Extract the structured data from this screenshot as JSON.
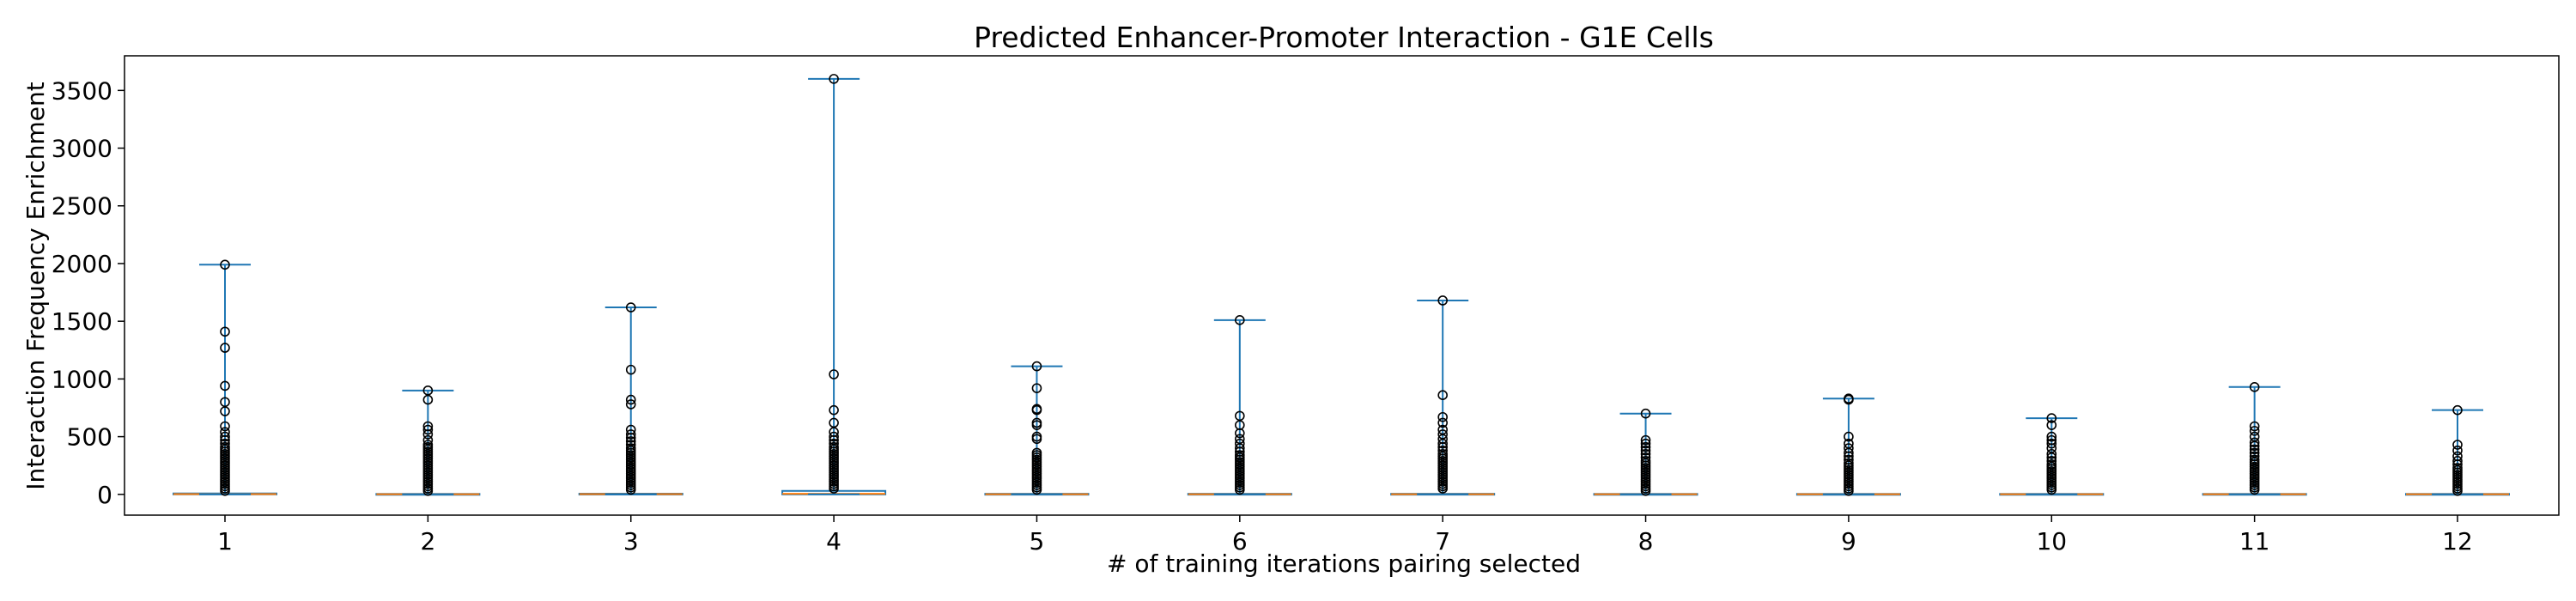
{
  "chart_data": {
    "type": "box",
    "title": "Predicted Enhancer-Promoter Interaction - G1E Cells",
    "xlabel": "# of training iterations pairing selected",
    "ylabel": "Interaction Frequency Enrichment",
    "ylim": [
      -180,
      3800
    ],
    "yticks": [
      "0",
      "500",
      "1000",
      "1500",
      "2000",
      "2500",
      "3000",
      "3500"
    ],
    "categories": [
      "1",
      "2",
      "3",
      "4",
      "5",
      "6",
      "7",
      "8",
      "9",
      "10",
      "11",
      "12"
    ],
    "grid": false,
    "colors": {
      "box": "#1f77b4",
      "median": "#ff7f0e",
      "flier": "#000000"
    },
    "boxes": [
      {
        "category": "1",
        "q1": 0,
        "median": 2,
        "q3": 8,
        "whisker_low": 0,
        "whisker_high": 1990,
        "fliers": [
          1990,
          1410,
          1270,
          940,
          800,
          720,
          590,
          540,
          500,
          470,
          440,
          410,
          390,
          370,
          350,
          330,
          310,
          290,
          270,
          250,
          230,
          210,
          190,
          170,
          150,
          130,
          110,
          90,
          70,
          50,
          30
        ]
      },
      {
        "category": "2",
        "q1": 0,
        "median": 1,
        "q3": 4,
        "whisker_low": 0,
        "whisker_high": 900,
        "fliers": [
          900,
          820,
          590,
          560,
          520,
          470,
          430,
          410,
          390,
          370,
          350,
          330,
          310,
          290,
          270,
          250,
          230,
          210,
          190,
          170,
          150,
          130,
          110,
          90,
          70,
          50,
          30
        ]
      },
      {
        "category": "3",
        "q1": 0,
        "median": 2,
        "q3": 6,
        "whisker_low": 0,
        "whisker_high": 1620,
        "fliers": [
          1620,
          1080,
          820,
          780,
          560,
          520,
          490,
          460,
          430,
          400,
          380,
          360,
          340,
          320,
          300,
          280,
          260,
          240,
          220,
          200,
          180,
          160,
          140,
          120,
          100,
          80,
          60,
          40
        ]
      },
      {
        "category": "4",
        "q1": 0,
        "median": 5,
        "q3": 30,
        "whisker_low": 0,
        "whisker_high": 3600,
        "fliers": [
          3600,
          1040,
          730,
          620,
          540,
          500,
          470,
          440,
          410,
          390,
          370,
          350,
          330,
          310,
          290,
          270,
          250,
          230,
          210,
          190,
          170,
          150,
          130,
          110,
          90,
          70,
          50
        ]
      },
      {
        "category": "5",
        "q1": 0,
        "median": 1,
        "q3": 5,
        "whisker_low": 0,
        "whisker_high": 1110,
        "fliers": [
          1110,
          920,
          740,
          730,
          620,
          600,
          500,
          480,
          360,
          340,
          320,
          300,
          280,
          260,
          240,
          220,
          200,
          180,
          160,
          140,
          120,
          100,
          80,
          60,
          40
        ]
      },
      {
        "category": "6",
        "q1": 0,
        "median": 1,
        "q3": 5,
        "whisker_low": 0,
        "whisker_high": 1510,
        "fliers": [
          1510,
          680,
          600,
          530,
          480,
          440,
          400,
          370,
          340,
          320,
          300,
          280,
          260,
          240,
          220,
          200,
          180,
          160,
          140,
          120,
          100,
          80,
          60,
          40
        ]
      },
      {
        "category": "7",
        "q1": 0,
        "median": 1,
        "q3": 5,
        "whisker_low": 0,
        "whisker_high": 1680,
        "fliers": [
          1680,
          860,
          670,
          620,
          560,
          520,
          480,
          440,
          410,
          380,
          350,
          330,
          310,
          290,
          270,
          250,
          230,
          210,
          190,
          170,
          150,
          130,
          110,
          90,
          70,
          50
        ]
      },
      {
        "category": "8",
        "q1": 0,
        "median": 1,
        "q3": 4,
        "whisker_low": 0,
        "whisker_high": 700,
        "fliers": [
          700,
          470,
          440,
          410,
          380,
          350,
          320,
          290,
          270,
          250,
          230,
          210,
          190,
          170,
          150,
          130,
          110,
          90,
          70,
          50,
          30
        ]
      },
      {
        "category": "9",
        "q1": 0,
        "median": 1,
        "q3": 4,
        "whisker_low": 0,
        "whisker_high": 830,
        "fliers": [
          830,
          820,
          500,
          440,
          400,
          360,
          330,
          300,
          270,
          250,
          230,
          210,
          190,
          170,
          150,
          130,
          110,
          90,
          70,
          50,
          30
        ]
      },
      {
        "category": "10",
        "q1": 0,
        "median": 1,
        "q3": 4,
        "whisker_low": 0,
        "whisker_high": 660,
        "fliers": [
          660,
          600,
          500,
          470,
          440,
          400,
          350,
          320,
          290,
          260,
          240,
          220,
          200,
          180,
          160,
          140,
          120,
          100,
          80,
          60,
          40
        ]
      },
      {
        "category": "11",
        "q1": 0,
        "median": 1,
        "q3": 4,
        "whisker_low": 0,
        "whisker_high": 930,
        "fliers": [
          930,
          590,
          550,
          500,
          450,
          420,
          390,
          360,
          330,
          300,
          280,
          260,
          240,
          220,
          200,
          180,
          160,
          140,
          120,
          100,
          80,
          60,
          40
        ]
      },
      {
        "category": "12",
        "q1": 0,
        "median": 1,
        "q3": 4,
        "whisker_low": 0,
        "whisker_high": 730,
        "fliers": [
          730,
          430,
          380,
          330,
          290,
          260,
          230,
          210,
          190,
          170,
          150,
          130,
          110,
          90,
          70,
          50,
          30
        ]
      }
    ]
  }
}
